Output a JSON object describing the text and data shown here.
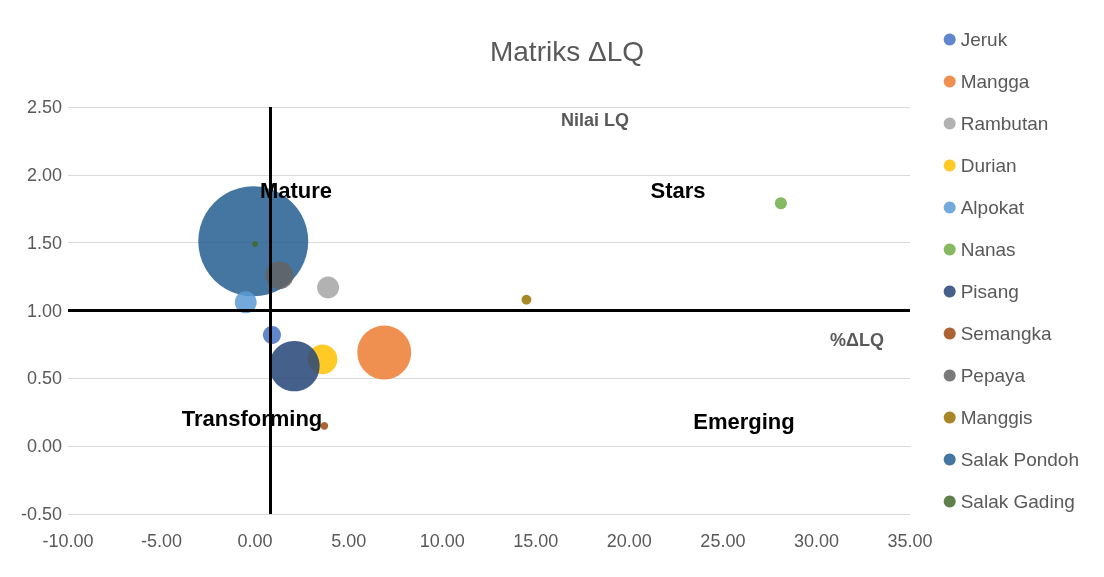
{
  "chart_data": {
    "type": "bubble",
    "title": "Matriks ΔLQ",
    "xlabel": "%ΔLQ",
    "ylabel": "Nilai LQ",
    "annotations": [
      "Mature",
      "Stars",
      "Transforming",
      "Emerging"
    ],
    "xlim": [
      -10,
      35
    ],
    "xticks": [
      {
        "value": -10,
        "label": "-10.00"
      },
      {
        "value": -5,
        "label": "-5.00"
      },
      {
        "value": 0,
        "label": "0.00"
      },
      {
        "value": 5,
        "label": "5.00"
      },
      {
        "value": 10,
        "label": "10.00"
      },
      {
        "value": 15,
        "label": "15.00"
      },
      {
        "value": 20,
        "label": "20.00"
      },
      {
        "value": 25,
        "label": "25.00"
      },
      {
        "value": 30,
        "label": "30.00"
      },
      {
        "value": 35,
        "label": "35.00"
      }
    ],
    "ylim": [
      -0.5,
      2.5
    ],
    "yticks": [
      {
        "value": -0.5,
        "label": "-0.50"
      },
      {
        "value": 0,
        "label": "0.00"
      },
      {
        "value": 0.5,
        "label": "0.50"
      },
      {
        "value": 1,
        "label": "1.00"
      },
      {
        "value": 1.5,
        "label": "1.50"
      },
      {
        "value": 2,
        "label": "2.00"
      },
      {
        "value": 2.5,
        "label": "2.50"
      }
    ],
    "grid": "y",
    "legend": "right",
    "ref_lines": [
      {
        "axis": "x",
        "value": 0.8,
        "color": "#000000"
      },
      {
        "axis": "y",
        "value": 1,
        "color": "#000000"
      }
    ],
    "series": [
      {
        "name": "Jeruk",
        "color": "#4472c4",
        "x": [
          0.9
        ],
        "values": [
          0.82
        ],
        "sizes": [
          0.027
        ]
      },
      {
        "name": "Mangga",
        "color": "#ed7d31",
        "x": [
          6.9
        ],
        "values": [
          0.69
        ],
        "sizes": [
          0.24
        ]
      },
      {
        "name": "Rambutan",
        "color": "#a5a5a5",
        "x": [
          3.9
        ],
        "values": [
          1.17
        ],
        "sizes": [
          0.04
        ]
      },
      {
        "name": "Durian",
        "color": "#ffc000",
        "x": [
          3.6
        ],
        "values": [
          0.64
        ],
        "sizes": [
          0.074
        ]
      },
      {
        "name": "Alpokat",
        "color": "#5b9bd5",
        "x": [
          -0.5
        ],
        "values": [
          1.06
        ],
        "sizes": [
          0.04
        ]
      },
      {
        "name": "Nanas",
        "color": "#70ad47",
        "x": [
          28.1
        ],
        "values": [
          1.79
        ],
        "sizes": [
          0.012
        ]
      },
      {
        "name": "Pisang",
        "color": "#264478",
        "x": [
          2.1
        ],
        "values": [
          0.59
        ],
        "sizes": [
          0.21
        ]
      },
      {
        "name": "Semangka",
        "color": "#9e480e",
        "x": [
          3.7
        ],
        "values": [
          0.15
        ],
        "sizes": [
          0.005
        ]
      },
      {
        "name": "Pepaya",
        "color": "#636363",
        "x": [
          1.3
        ],
        "values": [
          1.26
        ],
        "sizes": [
          0.065
        ]
      },
      {
        "name": "Manggis",
        "color": "#997300",
        "x": [
          14.5
        ],
        "values": [
          1.08
        ],
        "sizes": [
          0.008
        ]
      },
      {
        "name": "Salak Pondoh",
        "color": "#255e91",
        "x": [
          -0.1
        ],
        "values": [
          1.51
        ],
        "sizes": [
          1
        ]
      },
      {
        "name": "Salak Gading",
        "color": "#43682b",
        "x": [
          0
        ],
        "values": [
          1.49
        ],
        "sizes": [
          0.003
        ]
      }
    ]
  }
}
